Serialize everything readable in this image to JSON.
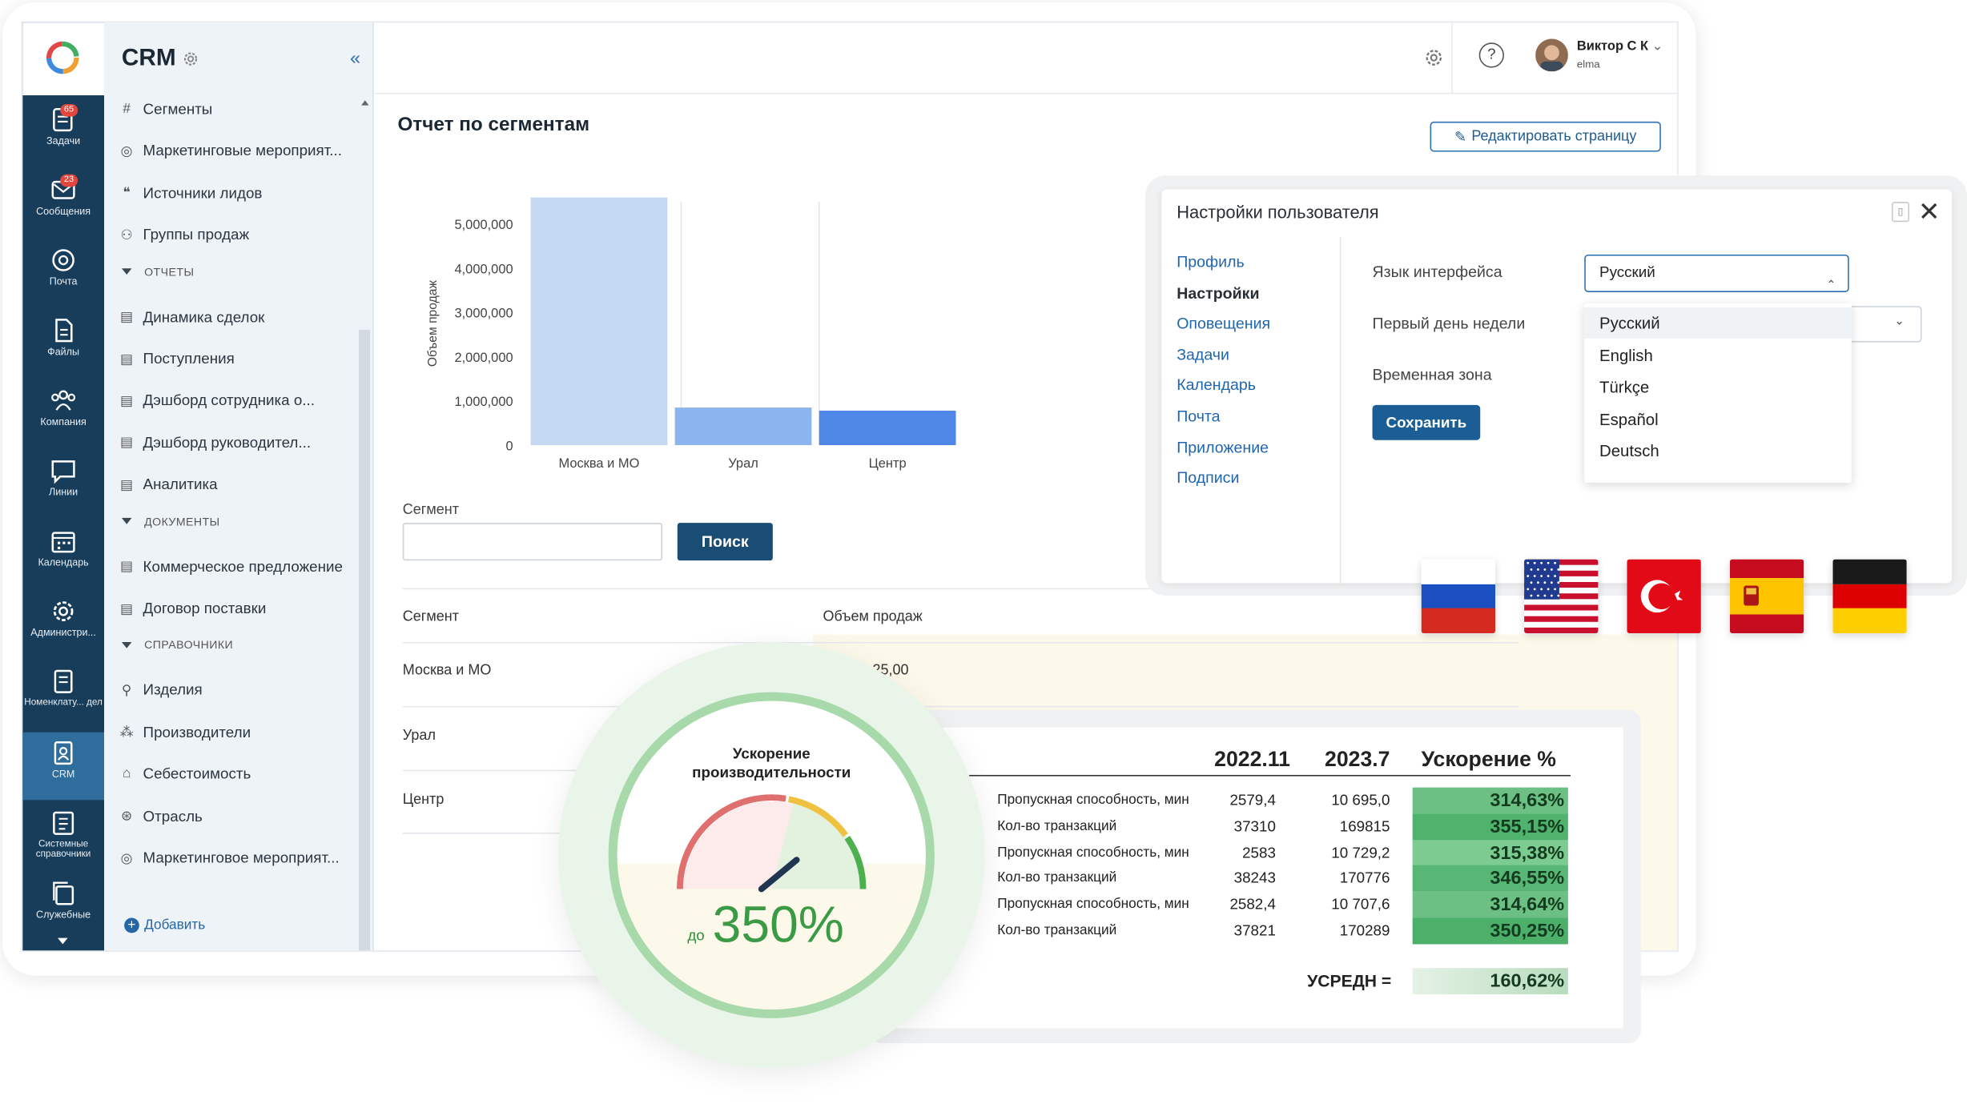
{
  "app": {
    "title": "CRM"
  },
  "rail": [
    {
      "label": "Задачи",
      "badge": "65",
      "icon": "tasks-icon"
    },
    {
      "label": "Сообщения",
      "badge": "23",
      "icon": "messages-icon"
    },
    {
      "label": "Почта",
      "icon": "mail-icon"
    },
    {
      "label": "Файлы",
      "icon": "files-icon"
    },
    {
      "label": "Компания",
      "icon": "company-icon"
    },
    {
      "label": "Линии",
      "icon": "lines-icon"
    },
    {
      "label": "Календарь",
      "icon": "calendar-icon"
    },
    {
      "label": "Администри...",
      "icon": "admin-icon"
    },
    {
      "label": "Номенклату... дел",
      "icon": "nomenclature-icon"
    },
    {
      "label": "CRM",
      "icon": "crm-icon",
      "active": true
    },
    {
      "label": "Системные справочники",
      "icon": "system-directories-icon"
    },
    {
      "label": "Служебные",
      "icon": "service-icon"
    }
  ],
  "nav": {
    "items_top": [
      "Сегменты",
      "Маркетинговые мероприят...",
      "Источники лидов",
      "Группы продаж"
    ],
    "sections": [
      {
        "title": "ОТЧЕТЫ",
        "items": [
          "Динамика сделок",
          "Поступления",
          "Дэшборд сотрудника о...",
          "Дэшборд руководител...",
          "Аналитика"
        ]
      },
      {
        "title": "ДОКУМЕНТЫ",
        "items": [
          "Коммерческое предложение",
          "Договор поставки"
        ]
      },
      {
        "title": "СПРАВОЧНИКИ",
        "items": [
          "Изделия",
          "Производители",
          "Себестоимость",
          "Отрасль",
          "Маркетинговое мероприят..."
        ]
      }
    ],
    "add_label": "Добавить"
  },
  "header": {
    "user_name": "Виктор С К",
    "user_org": "elma"
  },
  "page": {
    "title": "Отчет по сегментам",
    "edit_button": "Редактировать страницу",
    "segment_label": "Сегмент",
    "search_button": "Поиск",
    "table": {
      "columns": [
        "Сегмент",
        "Объем продаж"
      ],
      "rows": [
        {
          "segment": "Москва и МО",
          "value": "...25,00"
        },
        {
          "segment": "Урал",
          "value": ""
        },
        {
          "segment": "Центр",
          "value": ""
        }
      ]
    }
  },
  "chart_data": {
    "type": "bar",
    "categories": [
      "Москва и МО",
      "Урал",
      "Центр"
    ],
    "values": [
      5600000,
      850000,
      780000
    ],
    "ylabel": "Объем продаж",
    "yticks": [
      "0",
      "1,000,000",
      "2,000,000",
      "3,000,000",
      "4,000,000",
      "5,000,000"
    ],
    "ylim": [
      0,
      5500000
    ],
    "colors": [
      "#c5d8f2",
      "#8cb5f0",
      "#4f87e6"
    ],
    "grid": true
  },
  "settings": {
    "title": "Настройки пользователя",
    "menu": [
      "Профиль",
      "Настройки",
      "Оповещения",
      "Задачи",
      "Календарь",
      "Почта",
      "Приложение",
      "Подписи"
    ],
    "active_menu": "Настройки",
    "fields": [
      "Язык интерфейса",
      "Первый день недели",
      "Временная зона"
    ],
    "language_value": "Русский",
    "language_options": [
      "Русский",
      "English",
      "Türkçe",
      "Español",
      "Deutsch"
    ],
    "save_button": "Сохранить"
  },
  "flags": [
    "russia-flag",
    "usa-flag",
    "turkey-flag",
    "spain-flag",
    "germany-flag"
  ],
  "gauge": {
    "title": "Ускорение производительности",
    "prefix": "до",
    "value": "350%",
    "needle_fraction": 0.78
  },
  "performance": {
    "headers": [
      "2022.11",
      "2023.7",
      "Ускорение %"
    ],
    "rows": [
      {
        "label": "Пропускная способность, мин",
        "v1": "2579,4",
        "v2": "10 695,0",
        "pct": "314,63%"
      },
      {
        "label": "Кол-во транзакций",
        "v1": "37310",
        "v2": "169815",
        "pct": "355,15%"
      },
      {
        "label": "Пропускная способность, мин",
        "v1": "2583",
        "v2": "10 729,2",
        "pct": "315,38%"
      },
      {
        "label": "Кол-во транзакций",
        "v1": "38243",
        "v2": "170776",
        "pct": "346,55%"
      },
      {
        "label": "Пропускная способность, мин",
        "v1": "2582,4",
        "v2": "10 707,6",
        "pct": "314,64%"
      },
      {
        "label": "Кол-во транзакций",
        "v1": "37821",
        "v2": "170289",
        "pct": "350,25%"
      }
    ],
    "avg_label": "УСРЕДН =",
    "avg_value": "160,62%"
  }
}
